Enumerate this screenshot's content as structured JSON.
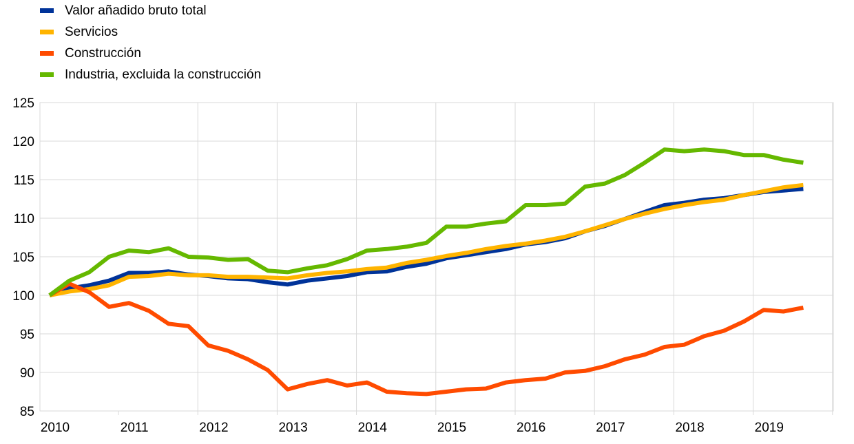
{
  "chart_data": {
    "type": "line",
    "title": "",
    "xlabel": "",
    "ylabel": "",
    "xlim": [
      2010,
      2020
    ],
    "ylim": [
      85,
      125
    ],
    "y_ticks": [
      "125",
      "120",
      "115",
      "110",
      "105",
      "100",
      "95",
      "90",
      "85"
    ],
    "x_ticks": [
      "2010",
      "2011",
      "2012",
      "2013",
      "2014",
      "2015",
      "2016",
      "2017",
      "2018",
      "2019"
    ],
    "grid": "vertical-and-horizontal",
    "legend_position": "top-left",
    "x": [
      2010.0,
      2010.25,
      2010.5,
      2010.75,
      2011.0,
      2011.25,
      2011.5,
      2011.75,
      2012.0,
      2012.25,
      2012.5,
      2012.75,
      2013.0,
      2013.25,
      2013.5,
      2013.75,
      2014.0,
      2014.25,
      2014.5,
      2014.75,
      2015.0,
      2015.25,
      2015.5,
      2015.75,
      2016.0,
      2016.25,
      2016.5,
      2016.75,
      2017.0,
      2017.25,
      2017.5,
      2017.75,
      2018.0,
      2018.25,
      2018.5,
      2018.75,
      2019.0,
      2019.25,
      2019.5
    ],
    "series": [
      {
        "name": "Valor añadido bruto total",
        "color": "#003399",
        "values": [
          100.0,
          100.9,
          101.3,
          101.9,
          102.9,
          102.9,
          103.1,
          102.7,
          102.5,
          102.2,
          102.1,
          101.7,
          101.4,
          101.9,
          102.2,
          102.5,
          103.0,
          103.1,
          103.7,
          104.1,
          104.8,
          105.2,
          105.6,
          106.0,
          106.6,
          106.9,
          107.4,
          108.3,
          109.0,
          109.9,
          110.8,
          111.7,
          112.0,
          112.4,
          112.6,
          113.0,
          113.4,
          113.6,
          113.8
        ]
      },
      {
        "name": "Servicios",
        "color": "#FFB400",
        "values": [
          100.0,
          100.5,
          100.8,
          101.3,
          102.4,
          102.5,
          102.8,
          102.6,
          102.6,
          102.4,
          102.4,
          102.3,
          102.2,
          102.6,
          102.9,
          103.1,
          103.4,
          103.6,
          104.2,
          104.6,
          105.1,
          105.5,
          106.0,
          106.4,
          106.7,
          107.1,
          107.6,
          108.3,
          109.1,
          109.9,
          110.6,
          111.2,
          111.7,
          112.1,
          112.4,
          113.0,
          113.5,
          114.0,
          114.3
        ]
      },
      {
        "name": "Construcción",
        "color": "#FF4B00",
        "values": [
          100.0,
          101.5,
          100.4,
          98.5,
          99.0,
          98.0,
          96.3,
          96.0,
          93.5,
          92.8,
          91.7,
          90.3,
          87.8,
          88.5,
          89.0,
          88.3,
          88.7,
          87.5,
          87.3,
          87.2,
          87.5,
          87.8,
          87.9,
          88.7,
          89.0,
          89.2,
          90.0,
          90.2,
          90.8,
          91.7,
          92.3,
          93.3,
          93.6,
          94.7,
          95.4,
          96.6,
          98.1,
          97.9,
          98.4
        ]
      },
      {
        "name": "Industria, excluida la construcción",
        "color": "#65B800",
        "values": [
          100.0,
          101.9,
          103.0,
          105.0,
          105.8,
          105.6,
          106.1,
          105.0,
          104.9,
          104.6,
          104.7,
          103.2,
          103.0,
          103.5,
          103.9,
          104.7,
          105.8,
          106.0,
          106.3,
          106.8,
          108.9,
          108.9,
          109.3,
          109.6,
          111.7,
          111.7,
          111.9,
          114.1,
          114.5,
          115.6,
          117.2,
          118.9,
          118.7,
          118.9,
          118.7,
          118.2,
          118.2,
          117.6,
          117.2
        ]
      }
    ]
  }
}
